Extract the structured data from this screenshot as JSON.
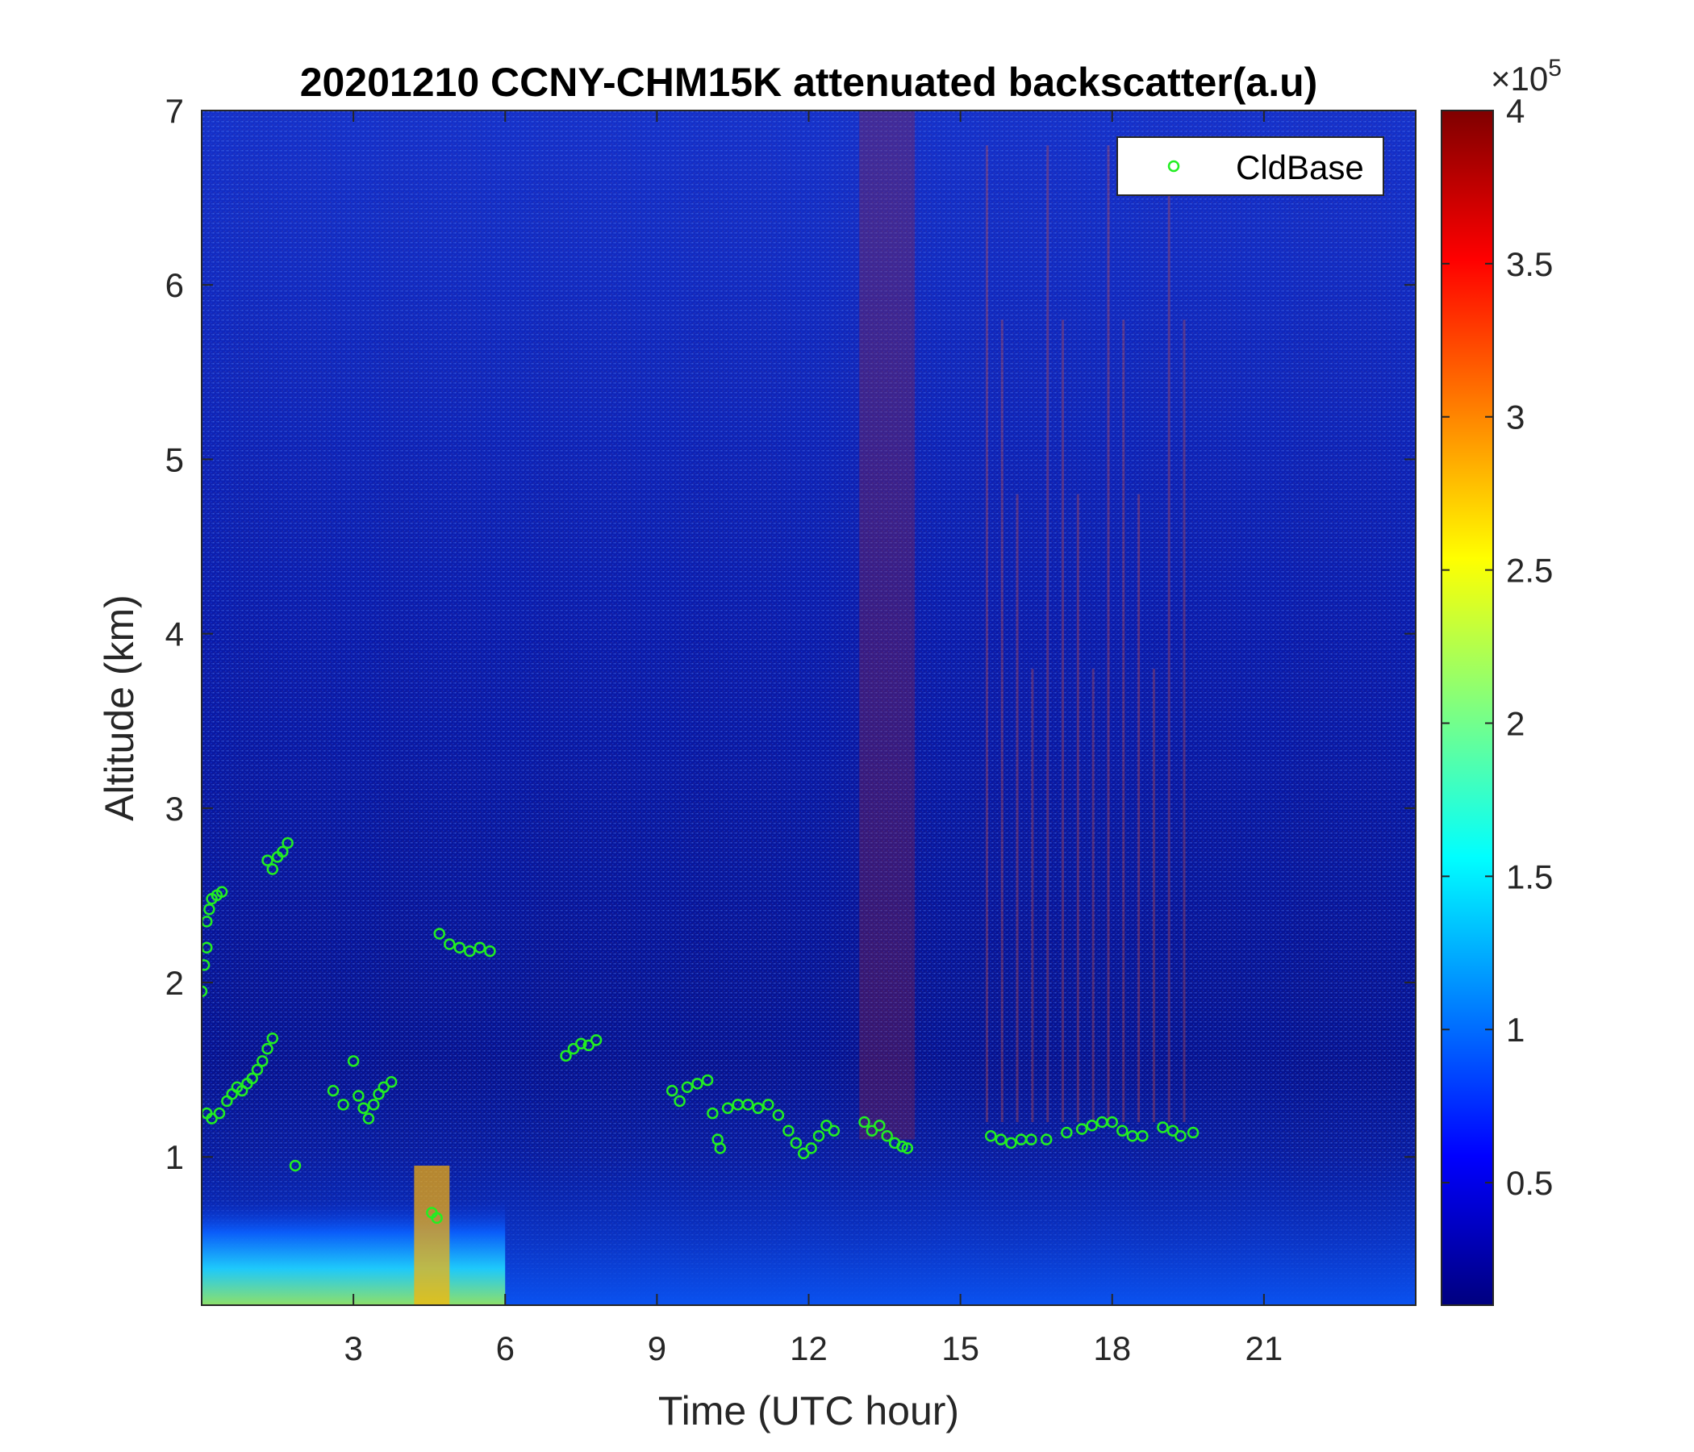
{
  "chart_data": {
    "type": "heatmap",
    "title": "20201210 CCNY-CHM15K attenuated backscatter(a.u)",
    "xlabel": "Time (UTC hour)",
    "ylabel": "Altitude (km)",
    "xlim": [
      0,
      24
    ],
    "ylim": [
      0.15,
      7
    ],
    "xticks": [
      3,
      6,
      9,
      12,
      15,
      18,
      21
    ],
    "yticks": [
      1,
      2,
      3,
      4,
      5,
      6,
      7
    ],
    "colorbar": {
      "colormap": "jet",
      "range": [
        0.1,
        4
      ],
      "ticks": [
        0.5,
        1,
        1.5,
        2,
        2.5,
        3,
        3.5,
        4
      ],
      "multiplier_base": "×10",
      "multiplier_exp": "5"
    },
    "legend": {
      "location": "top-right",
      "entries": [
        "CldBase"
      ]
    },
    "series": [
      {
        "name": "CldBase",
        "marker": "circle",
        "color": "#22ee22",
        "points": [
          [
            0.0,
            1.95
          ],
          [
            0.05,
            2.1
          ],
          [
            0.1,
            2.2
          ],
          [
            0.1,
            2.35
          ],
          [
            0.15,
            2.42
          ],
          [
            0.2,
            2.48
          ],
          [
            0.3,
            2.5
          ],
          [
            0.4,
            2.52
          ],
          [
            0.1,
            1.25
          ],
          [
            0.2,
            1.22
          ],
          [
            0.35,
            1.25
          ],
          [
            0.5,
            1.32
          ],
          [
            0.6,
            1.36
          ],
          [
            0.7,
            1.4
          ],
          [
            0.8,
            1.38
          ],
          [
            0.9,
            1.42
          ],
          [
            1.0,
            1.45
          ],
          [
            1.1,
            1.5
          ],
          [
            1.2,
            1.55
          ],
          [
            1.3,
            1.62
          ],
          [
            1.4,
            1.68
          ],
          [
            1.3,
            2.7
          ],
          [
            1.4,
            2.65
          ],
          [
            1.5,
            2.72
          ],
          [
            1.6,
            2.75
          ],
          [
            1.7,
            2.8
          ],
          [
            1.85,
            0.95
          ],
          [
            2.6,
            1.38
          ],
          [
            2.8,
            1.3
          ],
          [
            3.0,
            1.55
          ],
          [
            3.1,
            1.35
          ],
          [
            3.2,
            1.28
          ],
          [
            3.3,
            1.22
          ],
          [
            3.4,
            1.3
          ],
          [
            3.5,
            1.36
          ],
          [
            3.6,
            1.4
          ],
          [
            3.75,
            1.43
          ],
          [
            4.55,
            0.68
          ],
          [
            4.65,
            0.65
          ],
          [
            4.7,
            2.28
          ],
          [
            4.9,
            2.22
          ],
          [
            5.1,
            2.2
          ],
          [
            5.3,
            2.18
          ],
          [
            5.5,
            2.2
          ],
          [
            5.7,
            2.18
          ],
          [
            7.2,
            1.58
          ],
          [
            7.35,
            1.62
          ],
          [
            7.5,
            1.65
          ],
          [
            7.65,
            1.64
          ],
          [
            7.8,
            1.67
          ],
          [
            9.3,
            1.38
          ],
          [
            9.45,
            1.32
          ],
          [
            9.6,
            1.4
          ],
          [
            9.8,
            1.42
          ],
          [
            10.0,
            1.44
          ],
          [
            10.1,
            1.25
          ],
          [
            10.2,
            1.1
          ],
          [
            10.25,
            1.05
          ],
          [
            10.4,
            1.28
          ],
          [
            10.6,
            1.3
          ],
          [
            10.8,
            1.3
          ],
          [
            11.0,
            1.28
          ],
          [
            11.2,
            1.3
          ],
          [
            11.4,
            1.24
          ],
          [
            11.6,
            1.15
          ],
          [
            11.75,
            1.08
          ],
          [
            11.9,
            1.02
          ],
          [
            12.05,
            1.05
          ],
          [
            12.2,
            1.12
          ],
          [
            12.35,
            1.18
          ],
          [
            12.5,
            1.15
          ],
          [
            13.1,
            1.2
          ],
          [
            13.25,
            1.15
          ],
          [
            13.4,
            1.18
          ],
          [
            13.55,
            1.12
          ],
          [
            13.7,
            1.08
          ],
          [
            13.85,
            1.06
          ],
          [
            13.95,
            1.05
          ],
          [
            15.6,
            1.12
          ],
          [
            15.8,
            1.1
          ],
          [
            16.0,
            1.08
          ],
          [
            16.2,
            1.1
          ],
          [
            16.4,
            1.1
          ],
          [
            16.7,
            1.1
          ],
          [
            17.1,
            1.14
          ],
          [
            17.4,
            1.16
          ],
          [
            17.6,
            1.18
          ],
          [
            17.8,
            1.2
          ],
          [
            18.0,
            1.2
          ],
          [
            18.2,
            1.15
          ],
          [
            18.4,
            1.12
          ],
          [
            18.6,
            1.12
          ],
          [
            19.0,
            1.17
          ],
          [
            19.2,
            1.15
          ],
          [
            19.35,
            1.12
          ],
          [
            19.6,
            1.14
          ]
        ]
      }
    ],
    "features": [
      {
        "description": "aerosol layer near surface",
        "x_range": [
          0,
          6
        ],
        "top_km": 0.8
      },
      {
        "description": "cloud layers",
        "altitude_range_km": [
          1.0,
          2.9
        ]
      },
      {
        "description": "precipitation/virga streaks",
        "x_range": [
          13,
          19.5
        ],
        "altitude_range_km": [
          1.0,
          7.0
        ]
      }
    ]
  }
}
